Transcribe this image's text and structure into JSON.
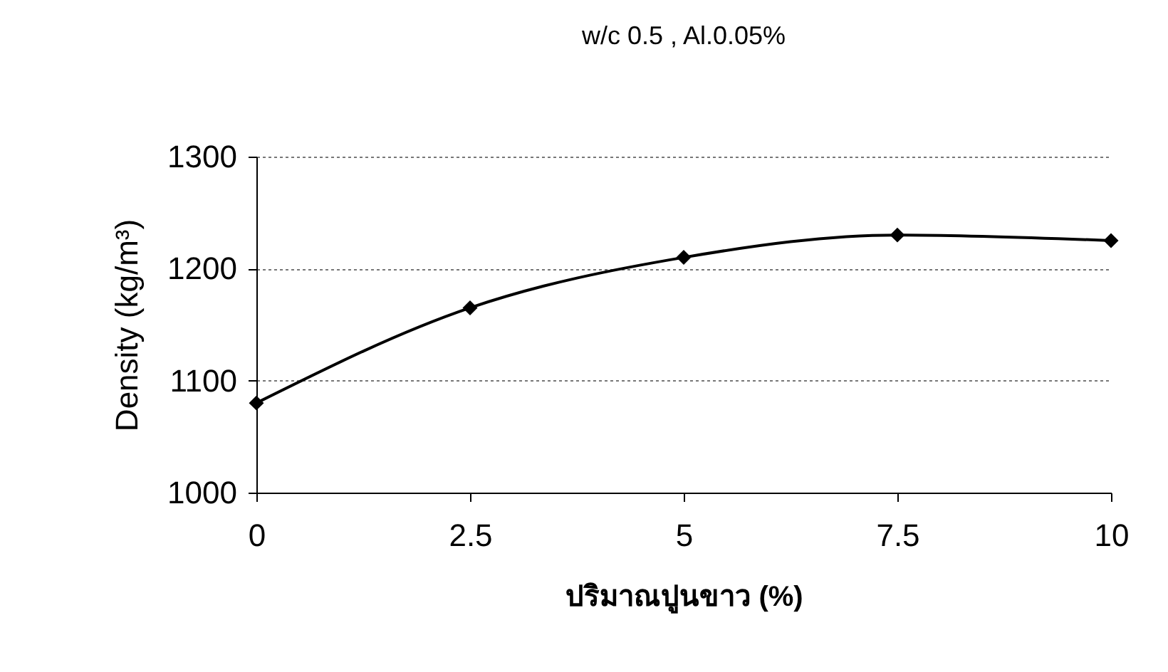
{
  "chart_data": {
    "type": "line",
    "title": "w/c 0.5 , Al.0.05%",
    "xlabel": "ปริมาณปูนขาว (%)",
    "ylabel": "Density (kg/m³)",
    "x": [
      0,
      2.5,
      5,
      7.5,
      10
    ],
    "series": [
      {
        "color": "#000000",
        "values": [
          1080,
          1165,
          1210,
          1230,
          1225
        ]
      }
    ],
    "xlim": [
      0,
      10
    ],
    "xticks": [
      0,
      2.5,
      5,
      7.5,
      10
    ],
    "ylim": [
      1000,
      1300
    ],
    "yticks": [
      1000,
      1100,
      1200,
      1300
    ],
    "grid": "y",
    "marker": "diamond",
    "line_style": "solid"
  }
}
